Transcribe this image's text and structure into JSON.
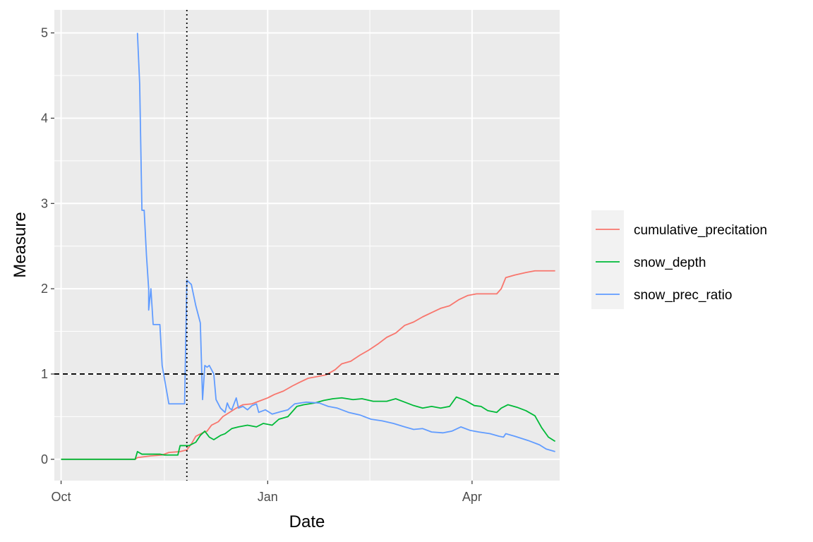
{
  "chart_data": {
    "type": "line",
    "xlabel": "Date",
    "ylabel": "Measure",
    "x_ticks": [
      "Oct",
      "Jan",
      "Apr"
    ],
    "x_tick_dates": [
      "2019-10-01",
      "2020-01-01",
      "2020-04-01"
    ],
    "y_ticks": [
      "0",
      "1",
      "2",
      "3",
      "4",
      "5"
    ],
    "y_tick_values": [
      0,
      1,
      2,
      3,
      4,
      5
    ],
    "xlim": [
      "2019-09-28",
      "2020-05-10"
    ],
    "ylim": [
      -0.25,
      5.27
    ],
    "grid": true,
    "legend_position": "right",
    "reference_lines": [
      {
        "orientation": "horizontal",
        "value": 1,
        "style": "dashed"
      },
      {
        "orientation": "vertical",
        "value": "2019-11-26",
        "style": "dotted"
      }
    ],
    "series": [
      {
        "name": "cumulative_precitation",
        "color": "#F8766D",
        "points": [
          [
            "2019-10-01",
            0
          ],
          [
            "2019-11-03",
            0
          ],
          [
            "2019-11-04",
            0.02
          ],
          [
            "2019-11-10",
            0.04
          ],
          [
            "2019-11-15",
            0.05
          ],
          [
            "2019-11-18",
            0.08
          ],
          [
            "2019-11-23",
            0.09
          ],
          [
            "2019-11-26",
            0.11
          ],
          [
            "2019-11-28",
            0.18
          ],
          [
            "2019-11-30",
            0.27
          ],
          [
            "2019-12-03",
            0.31
          ],
          [
            "2019-12-05",
            0.33
          ],
          [
            "2019-12-07",
            0.4
          ],
          [
            "2019-12-10",
            0.44
          ],
          [
            "2019-12-12",
            0.5
          ],
          [
            "2019-12-15",
            0.55
          ],
          [
            "2019-12-18",
            0.6
          ],
          [
            "2019-12-21",
            0.64
          ],
          [
            "2019-12-25",
            0.65
          ],
          [
            "2019-12-28",
            0.68
          ],
          [
            "2020-01-01",
            0.72
          ],
          [
            "2020-01-04",
            0.76
          ],
          [
            "2020-01-08",
            0.8
          ],
          [
            "2020-01-12",
            0.86
          ],
          [
            "2020-01-15",
            0.9
          ],
          [
            "2020-01-19",
            0.95
          ],
          [
            "2020-01-23",
            0.97
          ],
          [
            "2020-01-27",
            0.99
          ],
          [
            "2020-01-31",
            1.05
          ],
          [
            "2020-02-03",
            1.12
          ],
          [
            "2020-02-07",
            1.15
          ],
          [
            "2020-02-11",
            1.22
          ],
          [
            "2020-02-15",
            1.28
          ],
          [
            "2020-02-19",
            1.35
          ],
          [
            "2020-02-23",
            1.43
          ],
          [
            "2020-02-27",
            1.48
          ],
          [
            "2020-03-02",
            1.57
          ],
          [
            "2020-03-06",
            1.61
          ],
          [
            "2020-03-10",
            1.67
          ],
          [
            "2020-03-14",
            1.72
          ],
          [
            "2020-03-18",
            1.77
          ],
          [
            "2020-03-22",
            1.8
          ],
          [
            "2020-03-26",
            1.87
          ],
          [
            "2020-03-30",
            1.92
          ],
          [
            "2020-04-03",
            1.94
          ],
          [
            "2020-04-08",
            1.94
          ],
          [
            "2020-04-12",
            1.94
          ],
          [
            "2020-04-14",
            2.0
          ],
          [
            "2020-04-16",
            2.13
          ],
          [
            "2020-04-20",
            2.16
          ],
          [
            "2020-04-25",
            2.19
          ],
          [
            "2020-04-29",
            2.21
          ],
          [
            "2020-05-08",
            2.21
          ]
        ]
      },
      {
        "name": "snow_depth",
        "color": "#00BA38",
        "points": [
          [
            "2019-10-01",
            0
          ],
          [
            "2019-11-03",
            0
          ],
          [
            "2019-11-04",
            0.09
          ],
          [
            "2019-11-06",
            0.06
          ],
          [
            "2019-11-14",
            0.06
          ],
          [
            "2019-11-16",
            0.05
          ],
          [
            "2019-11-22",
            0.05
          ],
          [
            "2019-11-23",
            0.16
          ],
          [
            "2019-11-27",
            0.16
          ],
          [
            "2019-11-30",
            0.2
          ],
          [
            "2019-12-02",
            0.28
          ],
          [
            "2019-12-04",
            0.33
          ],
          [
            "2019-12-06",
            0.26
          ],
          [
            "2019-12-08",
            0.23
          ],
          [
            "2019-12-11",
            0.28
          ],
          [
            "2019-12-13",
            0.3
          ],
          [
            "2019-12-16",
            0.36
          ],
          [
            "2019-12-19",
            0.38
          ],
          [
            "2019-12-23",
            0.4
          ],
          [
            "2019-12-27",
            0.38
          ],
          [
            "2019-12-30",
            0.42
          ],
          [
            "2020-01-03",
            0.4
          ],
          [
            "2020-01-06",
            0.47
          ],
          [
            "2020-01-10",
            0.5
          ],
          [
            "2020-01-14",
            0.62
          ],
          [
            "2020-01-17",
            0.64
          ],
          [
            "2020-01-22",
            0.66
          ],
          [
            "2020-01-26",
            0.69
          ],
          [
            "2020-01-30",
            0.71
          ],
          [
            "2020-02-03",
            0.72
          ],
          [
            "2020-02-08",
            0.7
          ],
          [
            "2020-02-12",
            0.71
          ],
          [
            "2020-02-17",
            0.68
          ],
          [
            "2020-02-23",
            0.68
          ],
          [
            "2020-02-27",
            0.71
          ],
          [
            "2020-03-02",
            0.67
          ],
          [
            "2020-03-06",
            0.63
          ],
          [
            "2020-03-10",
            0.6
          ],
          [
            "2020-03-14",
            0.62
          ],
          [
            "2020-03-18",
            0.6
          ],
          [
            "2020-03-22",
            0.62
          ],
          [
            "2020-03-25",
            0.73
          ],
          [
            "2020-03-29",
            0.69
          ],
          [
            "2020-04-02",
            0.63
          ],
          [
            "2020-04-05",
            0.62
          ],
          [
            "2020-04-08",
            0.57
          ],
          [
            "2020-04-12",
            0.55
          ],
          [
            "2020-04-14",
            0.6
          ],
          [
            "2020-04-17",
            0.64
          ],
          [
            "2020-04-21",
            0.61
          ],
          [
            "2020-04-25",
            0.57
          ],
          [
            "2020-04-29",
            0.51
          ],
          [
            "2020-05-02",
            0.37
          ],
          [
            "2020-05-05",
            0.26
          ],
          [
            "2020-05-08",
            0.21
          ]
        ]
      },
      {
        "name": "snow_prec_ratio",
        "color": "#619CFF",
        "points": [
          [
            "2019-11-04",
            5.0
          ],
          [
            "2019-11-05",
            4.4
          ],
          [
            "2019-11-06",
            2.92
          ],
          [
            "2019-11-07",
            2.92
          ],
          [
            "2019-11-08",
            2.4
          ],
          [
            "2019-11-09",
            2.0
          ],
          [
            "2019-11-09",
            1.75
          ],
          [
            "2019-11-10",
            2.0
          ],
          [
            "2019-11-11",
            1.58
          ],
          [
            "2019-11-14",
            1.58
          ],
          [
            "2019-11-15",
            1.1
          ],
          [
            "2019-11-16",
            0.95
          ],
          [
            "2019-11-18",
            0.65
          ],
          [
            "2019-11-25",
            0.65
          ],
          [
            "2019-11-26",
            2.1
          ],
          [
            "2019-11-28",
            2.05
          ],
          [
            "2019-11-30",
            1.8
          ],
          [
            "2019-12-02",
            1.6
          ],
          [
            "2019-12-03",
            0.7
          ],
          [
            "2019-12-04",
            1.1
          ],
          [
            "2019-12-05",
            1.08
          ],
          [
            "2019-12-06",
            1.1
          ],
          [
            "2019-12-08",
            1.0
          ],
          [
            "2019-12-09",
            0.7
          ],
          [
            "2019-12-11",
            0.6
          ],
          [
            "2019-12-13",
            0.55
          ],
          [
            "2019-12-14",
            0.66
          ],
          [
            "2019-12-15",
            0.6
          ],
          [
            "2019-12-16",
            0.58
          ],
          [
            "2019-12-18",
            0.72
          ],
          [
            "2019-12-19",
            0.6
          ],
          [
            "2019-12-21",
            0.62
          ],
          [
            "2019-12-23",
            0.58
          ],
          [
            "2019-12-25",
            0.63
          ],
          [
            "2019-12-27",
            0.65
          ],
          [
            "2019-12-28",
            0.55
          ],
          [
            "2019-12-31",
            0.58
          ],
          [
            "2020-01-03",
            0.53
          ],
          [
            "2020-01-07",
            0.56
          ],
          [
            "2020-01-10",
            0.58
          ],
          [
            "2020-01-13",
            0.65
          ],
          [
            "2020-01-18",
            0.67
          ],
          [
            "2020-01-24",
            0.66
          ],
          [
            "2020-01-28",
            0.62
          ],
          [
            "2020-02-01",
            0.6
          ],
          [
            "2020-02-06",
            0.55
          ],
          [
            "2020-02-11",
            0.52
          ],
          [
            "2020-02-16",
            0.47
          ],
          [
            "2020-02-21",
            0.45
          ],
          [
            "2020-02-26",
            0.42
          ],
          [
            "2020-03-02",
            0.38
          ],
          [
            "2020-03-06",
            0.35
          ],
          [
            "2020-03-10",
            0.36
          ],
          [
            "2020-03-14",
            0.32
          ],
          [
            "2020-03-19",
            0.31
          ],
          [
            "2020-03-23",
            0.33
          ],
          [
            "2020-03-27",
            0.38
          ],
          [
            "2020-03-31",
            0.34
          ],
          [
            "2020-04-04",
            0.32
          ],
          [
            "2020-04-09",
            0.3
          ],
          [
            "2020-04-13",
            0.27
          ],
          [
            "2020-04-15",
            0.26
          ],
          [
            "2020-04-16",
            0.3
          ],
          [
            "2020-04-20",
            0.27
          ],
          [
            "2020-04-26",
            0.22
          ],
          [
            "2020-05-01",
            0.17
          ],
          [
            "2020-05-04",
            0.12
          ],
          [
            "2020-05-08",
            0.09
          ]
        ]
      }
    ]
  }
}
